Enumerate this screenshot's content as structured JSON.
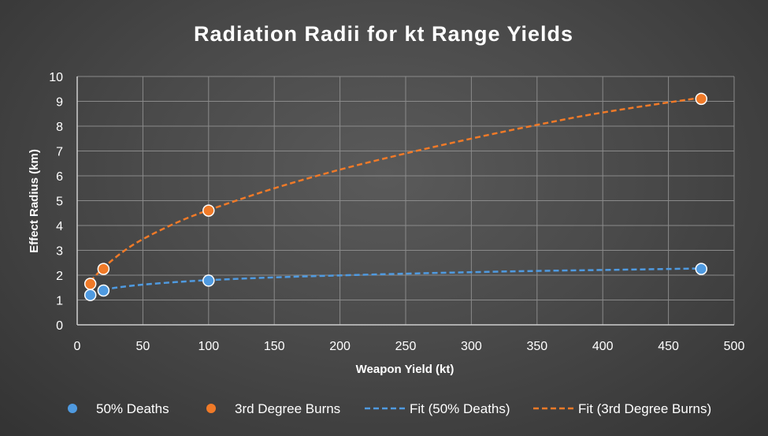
{
  "chart_data": {
    "type": "scatter",
    "title": "Radiation Radii for kt Range Yields",
    "xlabel": "Weapon Yield (kt)",
    "ylabel": "Effect Radius (km)",
    "xlim": [
      0,
      500
    ],
    "ylim": [
      0,
      10
    ],
    "xticks": [
      "0",
      "50",
      "100",
      "150",
      "200",
      "250",
      "300",
      "350",
      "400",
      "450",
      "500"
    ],
    "yticks": [
      "0",
      "1",
      "2",
      "3",
      "4",
      "5",
      "6",
      "7",
      "8",
      "9",
      "10"
    ],
    "grid": true,
    "legend_position": "bottom",
    "series": [
      {
        "name": "50% Deaths",
        "kind": "points",
        "color": "#4f9ae0",
        "x": [
          10,
          20,
          100,
          475
        ],
        "y": [
          1.2,
          1.38,
          1.78,
          2.25
        ]
      },
      {
        "name": "3rd Degree Burns",
        "kind": "points",
        "color": "#f07a28",
        "x": [
          10,
          20,
          100,
          475
        ],
        "y": [
          1.65,
          2.25,
          4.6,
          9.1
        ]
      },
      {
        "name": "Fit (50% Deaths)",
        "kind": "fit",
        "color": "#4f9ae0",
        "x": [
          20,
          30,
          50,
          75,
          100,
          150,
          200,
          250,
          300,
          350,
          400,
          475
        ],
        "y": [
          1.4,
          1.5,
          1.62,
          1.72,
          1.8,
          1.91,
          1.99,
          2.06,
          2.12,
          2.17,
          2.21,
          2.27
        ]
      },
      {
        "name": "Fit (3rd Degree Burns)",
        "kind": "fit",
        "color": "#f07a28",
        "x": [
          10,
          20,
          35,
          50,
          75,
          100,
          150,
          200,
          250,
          300,
          350,
          400,
          475
        ],
        "y": [
          1.75,
          2.3,
          2.95,
          3.45,
          4.1,
          4.62,
          5.5,
          6.25,
          6.9,
          7.5,
          8.05,
          8.55,
          9.15
        ]
      }
    ]
  }
}
